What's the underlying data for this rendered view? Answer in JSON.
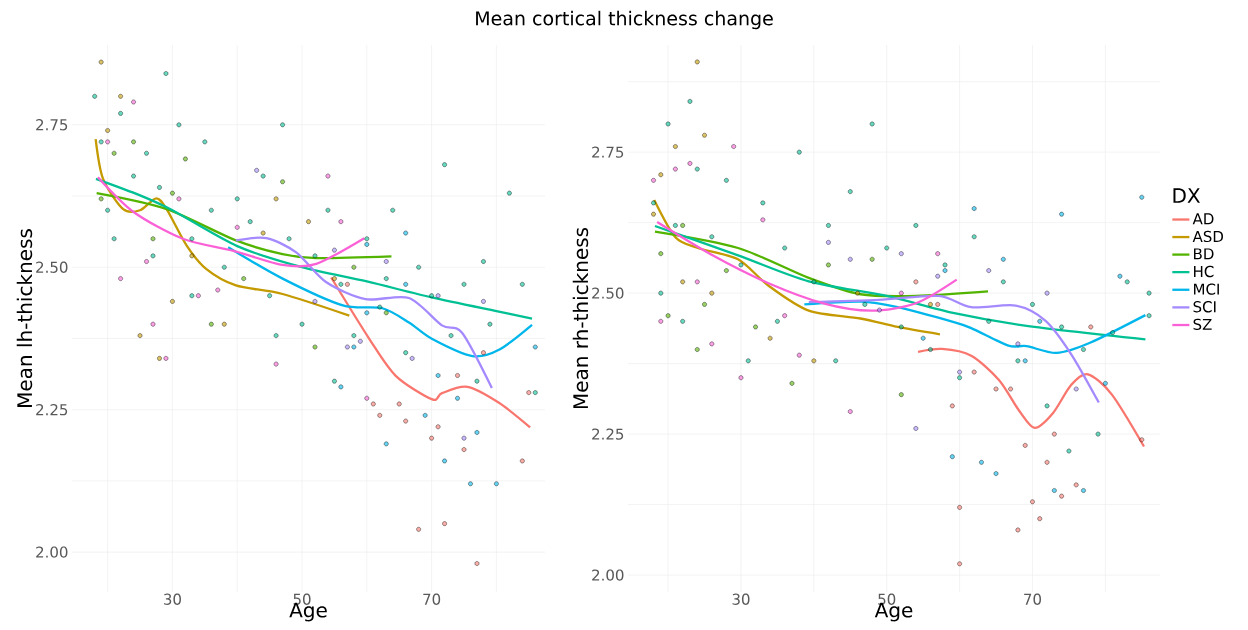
{
  "chart_data": [
    {
      "type": "scatter",
      "title": "Mean cortical thickness change",
      "xlabel": "Age",
      "ylabel": "Mean lh-thickness",
      "xlim": [
        14.5,
        87.5
      ],
      "ylim": [
        1.93,
        2.89
      ],
      "xticks": [
        {
          "value": 20,
          "label": null
        },
        30,
        {
          "value": 40,
          "label": null
        },
        50,
        {
          "value": 60,
          "label": null
        },
        70,
        {
          "value": 80,
          "label": null
        }
      ],
      "yticks": [
        {
          "value": 2,
          "label": "2.00"
        },
        {
          "value": 2.125,
          "label": null
        },
        {
          "value": 2.25,
          "label": "2.25"
        },
        {
          "value": 2.375,
          "label": null
        },
        {
          "value": 2.5,
          "label": "2.50"
        },
        {
          "value": 2.625,
          "label": null
        },
        {
          "value": 2.75,
          "label": "2.75"
        }
      ],
      "grid": true,
      "legend": false,
      "marker": "circle",
      "series": [
        {
          "type": "scatter",
          "color": "#00C094",
          "x": [
            18,
            19,
            20,
            22,
            24,
            26,
            28,
            29,
            31,
            33,
            35,
            36,
            38,
            40,
            42,
            44,
            45,
            47,
            48,
            50,
            52,
            54,
            56,
            58,
            60,
            62,
            64,
            66,
            68,
            70,
            72,
            73,
            75,
            77,
            79,
            82,
            84,
            86,
            21,
            27,
            33,
            46,
            55,
            63,
            78
          ],
          "values": [
            2.8,
            2.72,
            2.6,
            2.77,
            2.66,
            2.7,
            2.64,
            2.84,
            2.75,
            2.55,
            2.72,
            2.6,
            2.5,
            2.62,
            2.58,
            2.66,
            2.45,
            2.75,
            2.55,
            2.4,
            2.52,
            2.6,
            2.47,
            2.38,
            2.55,
            2.43,
            2.6,
            2.35,
            2.5,
            2.45,
            2.68,
            2.38,
            2.47,
            2.3,
            2.4,
            2.63,
            2.47,
            2.28,
            2.55,
            2.52,
            2.45,
            2.38,
            2.3,
            2.48,
            2.51
          ]
        },
        {
          "type": "scatter",
          "color": "#F8766D",
          "x": [
            57,
            61,
            62,
            65,
            66,
            68,
            70,
            71,
            72,
            74,
            75,
            77,
            78,
            84,
            85
          ],
          "values": [
            2.47,
            2.26,
            2.24,
            2.26,
            2.23,
            2.04,
            2.2,
            2.22,
            2.05,
            2.31,
            2.18,
            1.98,
            2.35,
            2.16,
            2.28
          ]
        },
        {
          "type": "scatter",
          "color": "#C49A00",
          "x": [
            19,
            20,
            22,
            25,
            28,
            30,
            33,
            38,
            44,
            51,
            55,
            46
          ],
          "values": [
            2.86,
            2.74,
            2.8,
            2.38,
            2.34,
            2.44,
            2.52,
            2.4,
            2.56,
            2.58,
            2.48,
            2.62
          ]
        },
        {
          "type": "scatter",
          "color": "#53B400",
          "x": [
            19,
            21,
            24,
            27,
            30,
            32,
            36,
            41,
            47,
            52,
            58,
            63
          ],
          "values": [
            2.62,
            2.7,
            2.72,
            2.55,
            2.63,
            2.69,
            2.4,
            2.48,
            2.65,
            2.36,
            2.5,
            2.42
          ]
        },
        {
          "type": "scatter",
          "color": "#00B6EB",
          "x": [
            56,
            58,
            60,
            63,
            66,
            69,
            71,
            72,
            74,
            76,
            77,
            80,
            86,
            60,
            66
          ],
          "values": [
            2.29,
            2.36,
            2.42,
            2.19,
            2.47,
            2.24,
            2.31,
            2.16,
            2.27,
            2.12,
            2.21,
            2.12,
            2.36,
            2.54,
            2.56
          ]
        },
        {
          "type": "scatter",
          "color": "#A58AFF",
          "x": [
            43,
            52,
            55,
            57,
            59,
            63,
            67,
            71,
            75,
            78
          ],
          "values": [
            2.67,
            2.44,
            2.53,
            2.36,
            2.37,
            2.51,
            2.34,
            2.45,
            2.2,
            2.44
          ]
        },
        {
          "type": "scatter",
          "color": "#FB61D7",
          "x": [
            20,
            22,
            24,
            26,
            27,
            29,
            31,
            34,
            37,
            40,
            46,
            54,
            56,
            60
          ],
          "values": [
            2.72,
            2.48,
            2.79,
            2.51,
            2.4,
            2.34,
            2.62,
            2.45,
            2.46,
            2.57,
            2.33,
            2.66,
            2.58,
            2.27
          ]
        },
        {
          "type": "line",
          "marker": "none",
          "line_style": "solid",
          "color": "#F8766D",
          "x": [
            54.5,
            60.4,
            64.5,
            70.1,
            71.6,
            75.5,
            80.4,
            85.2
          ],
          "values": [
            2.482,
            2.374,
            2.309,
            2.268,
            2.279,
            2.29,
            2.262,
            2.219
          ]
        },
        {
          "type": "line",
          "marker": "none",
          "line_style": "solid",
          "color": "#C49A00",
          "x": [
            18.15,
            19.3,
            22.4,
            25,
            27.5,
            29.1,
            32.2,
            35.2,
            39.8,
            47,
            57.3
          ],
          "values": [
            2.725,
            2.655,
            2.602,
            2.6,
            2.621,
            2.602,
            2.538,
            2.497,
            2.468,
            2.453,
            2.415
          ]
        },
        {
          "type": "line",
          "marker": "none",
          "line_style": "solid",
          "color": "#53B400",
          "x": [
            18.3,
            29.1,
            39.8,
            47,
            52.2,
            63.8
          ],
          "values": [
            2.63,
            2.602,
            2.547,
            2.523,
            2.516,
            2.519
          ]
        },
        {
          "type": "line",
          "marker": "none",
          "line_style": "solid",
          "color": "#00C094",
          "x": [
            18.2,
            25,
            30,
            40,
            50,
            60,
            70,
            80,
            85.5
          ],
          "values": [
            2.655,
            2.626,
            2.6,
            2.537,
            2.5,
            2.475,
            2.447,
            2.423,
            2.41
          ]
        },
        {
          "type": "line",
          "marker": "none",
          "line_style": "solid",
          "color": "#00B6EB",
          "x": [
            38.6,
            47,
            56.3,
            62.4,
            66.5,
            70.1,
            76.3,
            80.4,
            85.5
          ],
          "values": [
            2.535,
            2.48,
            2.433,
            2.428,
            2.403,
            2.374,
            2.344,
            2.355,
            2.399
          ]
        },
        {
          "type": "line",
          "marker": "none",
          "line_style": "solid",
          "color": "#A58AFF",
          "x": [
            39.8,
            44.5,
            49.1,
            53.7,
            59.8,
            66.5,
            71.6,
            74.7,
            79.3
          ],
          "values": [
            2.547,
            2.551,
            2.526,
            2.474,
            2.444,
            2.446,
            2.398,
            2.385,
            2.288
          ]
        },
        {
          "type": "line",
          "marker": "none",
          "line_style": "solid",
          "color": "#FB61D7",
          "x": [
            18.5,
            24,
            31.6,
            39.3,
            47,
            52.2,
            59.6
          ],
          "values": [
            2.658,
            2.597,
            2.55,
            2.529,
            2.504,
            2.506,
            2.551
          ]
        }
      ]
    },
    {
      "type": "scatter",
      "xlabel": "Age",
      "ylabel": "Mean rh-thickness",
      "legend_title": "DX",
      "xlim": [
        14.5,
        87.5
      ],
      "ylim": [
        1.97,
        2.94
      ],
      "xticks": [
        {
          "value": 20,
          "label": null
        },
        30,
        {
          "value": 40,
          "label": null
        },
        50,
        {
          "value": 60,
          "label": null
        },
        70,
        {
          "value": 80,
          "label": null
        }
      ],
      "yticks": [
        {
          "value": 2,
          "label": "2.00"
        },
        {
          "value": 2.125,
          "label": null
        },
        {
          "value": 2.25,
          "label": "2.25"
        },
        {
          "value": 2.375,
          "label": null
        },
        {
          "value": 2.5,
          "label": "2.50"
        },
        {
          "value": 2.625,
          "label": null
        },
        {
          "value": 2.75,
          "label": "2.75"
        },
        {
          "value": 2.875,
          "label": null
        }
      ],
      "grid": true,
      "legend": "right",
      "marker": "circle",
      "series": [
        {
          "type": "scatter",
          "color": "#00C094",
          "x": [
            18,
            19,
            20,
            21,
            22,
            23,
            24,
            26,
            28,
            30,
            31,
            33,
            35,
            36,
            38,
            40,
            42,
            43,
            45,
            47,
            48,
            50,
            52,
            54,
            56,
            58,
            60,
            62,
            64,
            66,
            68,
            70,
            72,
            74,
            75,
            77,
            79,
            81,
            83,
            86,
            86
          ],
          "values": [
            2.66,
            2.5,
            2.8,
            2.62,
            2.45,
            2.84,
            2.72,
            2.6,
            2.7,
            2.55,
            2.38,
            2.66,
            2.45,
            2.58,
            2.75,
            2.52,
            2.62,
            2.38,
            2.68,
            2.48,
            2.8,
            2.58,
            2.44,
            2.62,
            2.4,
            2.55,
            2.35,
            2.6,
            2.45,
            2.52,
            2.38,
            2.48,
            2.3,
            2.44,
            2.22,
            2.4,
            2.25,
            2.43,
            2.52,
            2.5,
            2.46
          ]
        },
        {
          "type": "scatter",
          "color": "#F8766D",
          "x": [
            54,
            57,
            59,
            60,
            60,
            62,
            65,
            67,
            68,
            69,
            70,
            71,
            72,
            73,
            74,
            76,
            78,
            85
          ],
          "values": [
            2.52,
            2.48,
            2.3,
            2.02,
            2.12,
            2.36,
            2.33,
            2.33,
            2.08,
            2.23,
            2.13,
            2.1,
            2.2,
            2.25,
            2.14,
            2.16,
            2.44,
            2.24
          ]
        },
        {
          "type": "scatter",
          "color": "#C49A00",
          "x": [
            18,
            19,
            21,
            22,
            24,
            25,
            26,
            34,
            40,
            46,
            56
          ],
          "values": [
            2.64,
            2.71,
            2.76,
            2.52,
            2.91,
            2.78,
            2.5,
            2.42,
            2.38,
            2.5,
            2.48
          ]
        },
        {
          "type": "scatter",
          "color": "#53B400",
          "x": [
            19,
            20,
            22,
            24,
            25,
            28,
            32,
            37,
            42,
            48,
            52
          ],
          "values": [
            2.57,
            2.46,
            2.62,
            2.4,
            2.48,
            2.54,
            2.44,
            2.34,
            2.55,
            2.56,
            2.32
          ]
        },
        {
          "type": "scatter",
          "color": "#00B6EB",
          "x": [
            55,
            58,
            59,
            62,
            63,
            65,
            66,
            69,
            71,
            73,
            74,
            77,
            80,
            82,
            85
          ],
          "values": [
            2.42,
            2.54,
            2.21,
            2.65,
            2.2,
            2.18,
            2.56,
            2.38,
            2.45,
            2.15,
            2.64,
            2.15,
            2.34,
            2.53,
            2.67
          ]
        },
        {
          "type": "scatter",
          "color": "#A58AFF",
          "x": [
            42,
            45,
            49,
            52,
            54,
            57,
            60,
            64,
            68,
            72,
            76
          ],
          "values": [
            2.59,
            2.56,
            2.47,
            2.57,
            2.26,
            2.53,
            2.36,
            2.54,
            2.41,
            2.5,
            2.33
          ]
        },
        {
          "type": "scatter",
          "color": "#FB61D7",
          "x": [
            18,
            19,
            21,
            23,
            24,
            26,
            29,
            30,
            33,
            36,
            38,
            45,
            52,
            57
          ],
          "values": [
            2.7,
            2.45,
            2.72,
            2.73,
            2.52,
            2.41,
            2.76,
            2.35,
            2.63,
            2.46,
            2.39,
            2.29,
            2.5,
            2.57
          ]
        },
        {
          "type": "line",
          "name": "AD",
          "marker": "none",
          "line_style": "solid",
          "color": "#F8766D",
          "x": [
            54.3,
            57.6,
            61.6,
            65.4,
            68.2,
            70.3,
            72.8,
            75.3,
            77.6,
            80.9,
            85.3
          ],
          "values": [
            2.396,
            2.401,
            2.389,
            2.346,
            2.291,
            2.261,
            2.287,
            2.337,
            2.356,
            2.32,
            2.228
          ]
        },
        {
          "type": "line",
          "name": "ASD",
          "marker": "none",
          "line_style": "solid",
          "color": "#C49A00",
          "x": [
            18.1,
            21,
            24.1,
            29.6,
            33.7,
            39.3,
            46.4,
            51.5,
            57.3
          ],
          "values": [
            2.665,
            2.599,
            2.58,
            2.56,
            2.514,
            2.469,
            2.455,
            2.44,
            2.427
          ]
        },
        {
          "type": "line",
          "name": "BD",
          "marker": "none",
          "line_style": "solid",
          "color": "#53B400",
          "x": [
            18.2,
            29.6,
            39.3,
            46.4,
            54,
            63.9
          ],
          "values": [
            2.609,
            2.58,
            2.527,
            2.498,
            2.495,
            2.503
          ]
        },
        {
          "type": "line",
          "name": "HC",
          "marker": "none",
          "line_style": "solid",
          "color": "#00C094",
          "x": [
            18.2,
            29.6,
            39.3,
            50,
            59.1,
            69.2,
            85.5
          ],
          "values": [
            2.619,
            2.567,
            2.521,
            2.495,
            2.465,
            2.442,
            2.418
          ]
        },
        {
          "type": "line",
          "name": "MCI",
          "marker": "none",
          "line_style": "solid",
          "color": "#00B6EB",
          "x": [
            38.7,
            46.4,
            51.5,
            59.1,
            61.6,
            66.7,
            69.2,
            73.3,
            77.9,
            85.5
          ],
          "values": [
            2.48,
            2.485,
            2.475,
            2.449,
            2.438,
            2.407,
            2.406,
            2.394,
            2.412,
            2.461
          ]
        },
        {
          "type": "line",
          "name": "SCI",
          "marker": "none",
          "line_style": "solid",
          "color": "#A58AFF",
          "x": [
            39.3,
            48.9,
            57.1,
            61.6,
            67.7,
            71.8,
            75.3,
            79.1
          ],
          "values": [
            2.484,
            2.488,
            2.495,
            2.475,
            2.478,
            2.451,
            2.392,
            2.306
          ]
        },
        {
          "type": "line",
          "name": "SZ",
          "marker": "none",
          "line_style": "solid",
          "color": "#FB61D7",
          "x": [
            18.5,
            26.1,
            33.7,
            41.3,
            47.9,
            54,
            59.6
          ],
          "values": [
            2.626,
            2.567,
            2.518,
            2.482,
            2.469,
            2.482,
            2.524
          ]
        }
      ]
    }
  ]
}
